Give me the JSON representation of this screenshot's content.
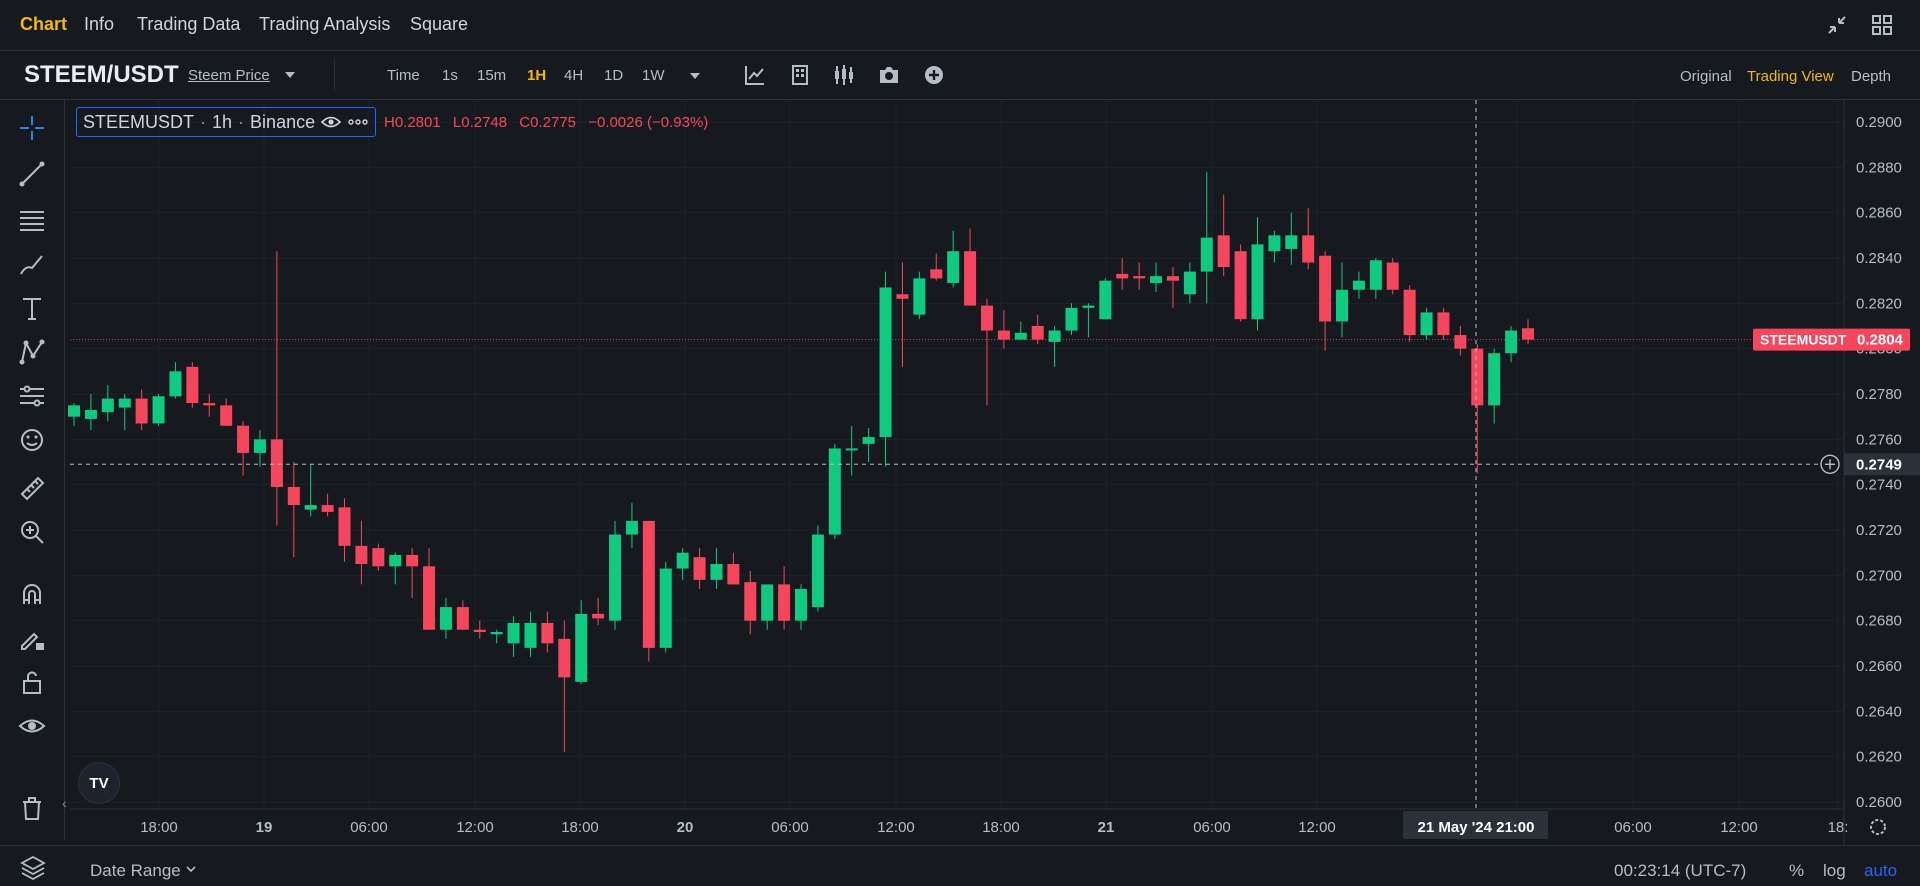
{
  "nav": {
    "items": [
      "Chart",
      "Info",
      "Trading Data",
      "Trading Analysis",
      "Square"
    ],
    "active": "Chart"
  },
  "symbol": {
    "pair": "STEEM/USDT",
    "subtitle": "Steem Price"
  },
  "timeframes": [
    "Time",
    "1s",
    "15m",
    "1H",
    "4H",
    "1D",
    "1W"
  ],
  "active_timeframe": "1H",
  "views": [
    "Original",
    "Trading View",
    "Depth"
  ],
  "active_view": "Trading View",
  "legend": {
    "symbol": "STEEMUSDT",
    "interval": "1h",
    "exchange": "Binance",
    "high": "H0.2801",
    "low": "L0.2748",
    "close": "C0.2775",
    "change": "−0.0026 (−0.93%)"
  },
  "price_tag": {
    "label": "STEEMUSDT",
    "value": "0.2804",
    "color": "#f6465d"
  },
  "crosshair": {
    "price": "0.2749",
    "time": "21 May '24  21:00"
  },
  "bottom": {
    "date_range": "Date Range",
    "clock": "00:23:14 (UTC-7)",
    "percent": "%",
    "log": "log",
    "auto": "auto"
  },
  "colors": {
    "up": "#0ecb81",
    "down": "#f6465d",
    "accent": "#f0b90b",
    "background": "#161a1e"
  },
  "chart_data": {
    "type": "candlestick",
    "interval": "1h",
    "y_ticks": [
      "0.2900",
      "0.2880",
      "0.2860",
      "0.2840",
      "0.2820",
      "0.2800",
      "0.2780",
      "0.2760",
      "0.2740",
      "0.2720",
      "0.2700",
      "0.2680",
      "0.2660",
      "0.2640",
      "0.2620",
      "0.2600"
    ],
    "ylim": [
      0.26,
      0.29
    ],
    "x_ticks": [
      "18:00",
      "19",
      "06:00",
      "12:00",
      "18:00",
      "20",
      "06:00",
      "12:00",
      "18:00",
      "21",
      "06:00",
      "12:00",
      "21:00",
      "06:00",
      "12:00",
      "18:"
    ],
    "last_price": 0.2804,
    "candles": [
      {
        "o": 0.277,
        "h": 0.2776,
        "l": 0.2766,
        "c": 0.2775
      },
      {
        "o": 0.2769,
        "h": 0.278,
        "l": 0.2764,
        "c": 0.2773
      },
      {
        "o": 0.2772,
        "h": 0.2784,
        "l": 0.2768,
        "c": 0.2778
      },
      {
        "o": 0.2774,
        "h": 0.278,
        "l": 0.2764,
        "c": 0.2778
      },
      {
        "o": 0.2778,
        "h": 0.2782,
        "l": 0.2764,
        "c": 0.2767
      },
      {
        "o": 0.2767,
        "h": 0.278,
        "l": 0.2766,
        "c": 0.2779
      },
      {
        "o": 0.2779,
        "h": 0.2794,
        "l": 0.2778,
        "c": 0.279
      },
      {
        "o": 0.2792,
        "h": 0.2794,
        "l": 0.2774,
        "c": 0.2776
      },
      {
        "o": 0.2776,
        "h": 0.278,
        "l": 0.277,
        "c": 0.2775
      },
      {
        "o": 0.2775,
        "h": 0.2778,
        "l": 0.2766,
        "c": 0.2766
      },
      {
        "o": 0.2766,
        "h": 0.2768,
        "l": 0.2744,
        "c": 0.2754
      },
      {
        "o": 0.2754,
        "h": 0.2764,
        "l": 0.2748,
        "c": 0.276
      },
      {
        "o": 0.276,
        "h": 0.2843,
        "l": 0.2722,
        "c": 0.2739
      },
      {
        "o": 0.2739,
        "h": 0.275,
        "l": 0.2708,
        "c": 0.2731
      },
      {
        "o": 0.2729,
        "h": 0.2749,
        "l": 0.2726,
        "c": 0.2731
      },
      {
        "o": 0.2731,
        "h": 0.2736,
        "l": 0.2726,
        "c": 0.2728
      },
      {
        "o": 0.273,
        "h": 0.2734,
        "l": 0.2706,
        "c": 0.2713
      },
      {
        "o": 0.2713,
        "h": 0.2724,
        "l": 0.2696,
        "c": 0.2705
      },
      {
        "o": 0.2712,
        "h": 0.2714,
        "l": 0.2702,
        "c": 0.2704
      },
      {
        "o": 0.2704,
        "h": 0.271,
        "l": 0.2696,
        "c": 0.2709
      },
      {
        "o": 0.2709,
        "h": 0.2712,
        "l": 0.269,
        "c": 0.2704
      },
      {
        "o": 0.2704,
        "h": 0.2712,
        "l": 0.2676,
        "c": 0.2676
      },
      {
        "o": 0.2676,
        "h": 0.269,
        "l": 0.2672,
        "c": 0.2686
      },
      {
        "o": 0.2686,
        "h": 0.2689,
        "l": 0.2676,
        "c": 0.2676
      },
      {
        "o": 0.2676,
        "h": 0.268,
        "l": 0.2672,
        "c": 0.2675
      },
      {
        "o": 0.2674,
        "h": 0.2676,
        "l": 0.267,
        "c": 0.2675
      },
      {
        "o": 0.267,
        "h": 0.2682,
        "l": 0.2664,
        "c": 0.2679
      },
      {
        "o": 0.2668,
        "h": 0.2684,
        "l": 0.2664,
        "c": 0.2679
      },
      {
        "o": 0.2679,
        "h": 0.2684,
        "l": 0.2666,
        "c": 0.267
      },
      {
        "o": 0.2672,
        "h": 0.268,
        "l": 0.2622,
        "c": 0.2655
      },
      {
        "o": 0.2653,
        "h": 0.2689,
        "l": 0.2652,
        "c": 0.2683
      },
      {
        "o": 0.2683,
        "h": 0.269,
        "l": 0.2678,
        "c": 0.2681
      },
      {
        "o": 0.268,
        "h": 0.2724,
        "l": 0.2676,
        "c": 0.2718
      },
      {
        "o": 0.2718,
        "h": 0.2732,
        "l": 0.2712,
        "c": 0.2724
      },
      {
        "o": 0.2724,
        "h": 0.2724,
        "l": 0.2662,
        "c": 0.2668
      },
      {
        "o": 0.2668,
        "h": 0.2706,
        "l": 0.2666,
        "c": 0.2703
      },
      {
        "o": 0.2703,
        "h": 0.2712,
        "l": 0.2698,
        "c": 0.271
      },
      {
        "o": 0.2708,
        "h": 0.2712,
        "l": 0.2694,
        "c": 0.2698
      },
      {
        "o": 0.2698,
        "h": 0.2712,
        "l": 0.2694,
        "c": 0.2705
      },
      {
        "o": 0.2705,
        "h": 0.271,
        "l": 0.2696,
        "c": 0.2696
      },
      {
        "o": 0.2697,
        "h": 0.2702,
        "l": 0.2674,
        "c": 0.268
      },
      {
        "o": 0.268,
        "h": 0.2694,
        "l": 0.2676,
        "c": 0.2696
      },
      {
        "o": 0.2696,
        "h": 0.2704,
        "l": 0.2676,
        "c": 0.268
      },
      {
        "o": 0.268,
        "h": 0.2696,
        "l": 0.2676,
        "c": 0.2694
      },
      {
        "o": 0.2686,
        "h": 0.2722,
        "l": 0.2684,
        "c": 0.2718
      },
      {
        "o": 0.2718,
        "h": 0.2758,
        "l": 0.2716,
        "c": 0.2756
      },
      {
        "o": 0.2756,
        "h": 0.2766,
        "l": 0.2744,
        "c": 0.2756
      },
      {
        "o": 0.2758,
        "h": 0.2765,
        "l": 0.275,
        "c": 0.2761
      },
      {
        "o": 0.2761,
        "h": 0.2834,
        "l": 0.2748,
        "c": 0.2827
      },
      {
        "o": 0.2824,
        "h": 0.2838,
        "l": 0.2792,
        "c": 0.2822
      },
      {
        "o": 0.2815,
        "h": 0.2834,
        "l": 0.2813,
        "c": 0.2831
      },
      {
        "o": 0.2835,
        "h": 0.2842,
        "l": 0.283,
        "c": 0.2831
      },
      {
        "o": 0.2829,
        "h": 0.2852,
        "l": 0.2827,
        "c": 0.2843
      },
      {
        "o": 0.2843,
        "h": 0.2853,
        "l": 0.282,
        "c": 0.2819
      },
      {
        "o": 0.2819,
        "h": 0.2822,
        "l": 0.2775,
        "c": 0.2808
      },
      {
        "o": 0.2808,
        "h": 0.2817,
        "l": 0.28,
        "c": 0.2804
      },
      {
        "o": 0.2804,
        "h": 0.2812,
        "l": 0.2804,
        "c": 0.2807
      },
      {
        "o": 0.281,
        "h": 0.2815,
        "l": 0.2802,
        "c": 0.2804
      },
      {
        "o": 0.2803,
        "h": 0.281,
        "l": 0.2792,
        "c": 0.2808
      },
      {
        "o": 0.2808,
        "h": 0.282,
        "l": 0.2806,
        "c": 0.2818
      },
      {
        "o": 0.2818,
        "h": 0.282,
        "l": 0.2805,
        "c": 0.2819
      },
      {
        "o": 0.2813,
        "h": 0.2831,
        "l": 0.2813,
        "c": 0.283
      },
      {
        "o": 0.2833,
        "h": 0.284,
        "l": 0.2826,
        "c": 0.2831
      },
      {
        "o": 0.2832,
        "h": 0.2838,
        "l": 0.2826,
        "c": 0.2831
      },
      {
        "o": 0.2829,
        "h": 0.2838,
        "l": 0.2825,
        "c": 0.2832
      },
      {
        "o": 0.2832,
        "h": 0.2836,
        "l": 0.2818,
        "c": 0.283
      },
      {
        "o": 0.2824,
        "h": 0.2838,
        "l": 0.282,
        "c": 0.2834
      },
      {
        "o": 0.2834,
        "h": 0.2878,
        "l": 0.282,
        "c": 0.2849
      },
      {
        "o": 0.285,
        "h": 0.2868,
        "l": 0.2832,
        "c": 0.2836
      },
      {
        "o": 0.2843,
        "h": 0.2846,
        "l": 0.2812,
        "c": 0.2813
      },
      {
        "o": 0.2813,
        "h": 0.2858,
        "l": 0.2808,
        "c": 0.2846
      },
      {
        "o": 0.2843,
        "h": 0.2852,
        "l": 0.2838,
        "c": 0.285
      },
      {
        "o": 0.2844,
        "h": 0.286,
        "l": 0.2837,
        "c": 0.285
      },
      {
        "o": 0.285,
        "h": 0.2862,
        "l": 0.2835,
        "c": 0.2838
      },
      {
        "o": 0.2841,
        "h": 0.2843,
        "l": 0.2799,
        "c": 0.2812
      },
      {
        "o": 0.2812,
        "h": 0.2838,
        "l": 0.2805,
        "c": 0.2826
      },
      {
        "o": 0.2826,
        "h": 0.2834,
        "l": 0.2822,
        "c": 0.283
      },
      {
        "o": 0.2826,
        "h": 0.284,
        "l": 0.2822,
        "c": 0.2839
      },
      {
        "o": 0.2838,
        "h": 0.284,
        "l": 0.2824,
        "c": 0.2826
      },
      {
        "o": 0.2826,
        "h": 0.2828,
        "l": 0.2803,
        "c": 0.2806
      },
      {
        "o": 0.2806,
        "h": 0.2818,
        "l": 0.2804,
        "c": 0.2816
      },
      {
        "o": 0.2816,
        "h": 0.2818,
        "l": 0.2804,
        "c": 0.2806
      },
      {
        "o": 0.2806,
        "h": 0.281,
        "l": 0.2797,
        "c": 0.28
      },
      {
        "o": 0.28,
        "h": 0.2802,
        "l": 0.2745,
        "c": 0.2775
      },
      {
        "o": 0.2775,
        "h": 0.28,
        "l": 0.2767,
        "c": 0.2798
      },
      {
        "o": 0.2798,
        "h": 0.281,
        "l": 0.2794,
        "c": 0.2808
      },
      {
        "o": 0.2809,
        "h": 0.2813,
        "l": 0.2802,
        "c": 0.2804
      }
    ]
  }
}
